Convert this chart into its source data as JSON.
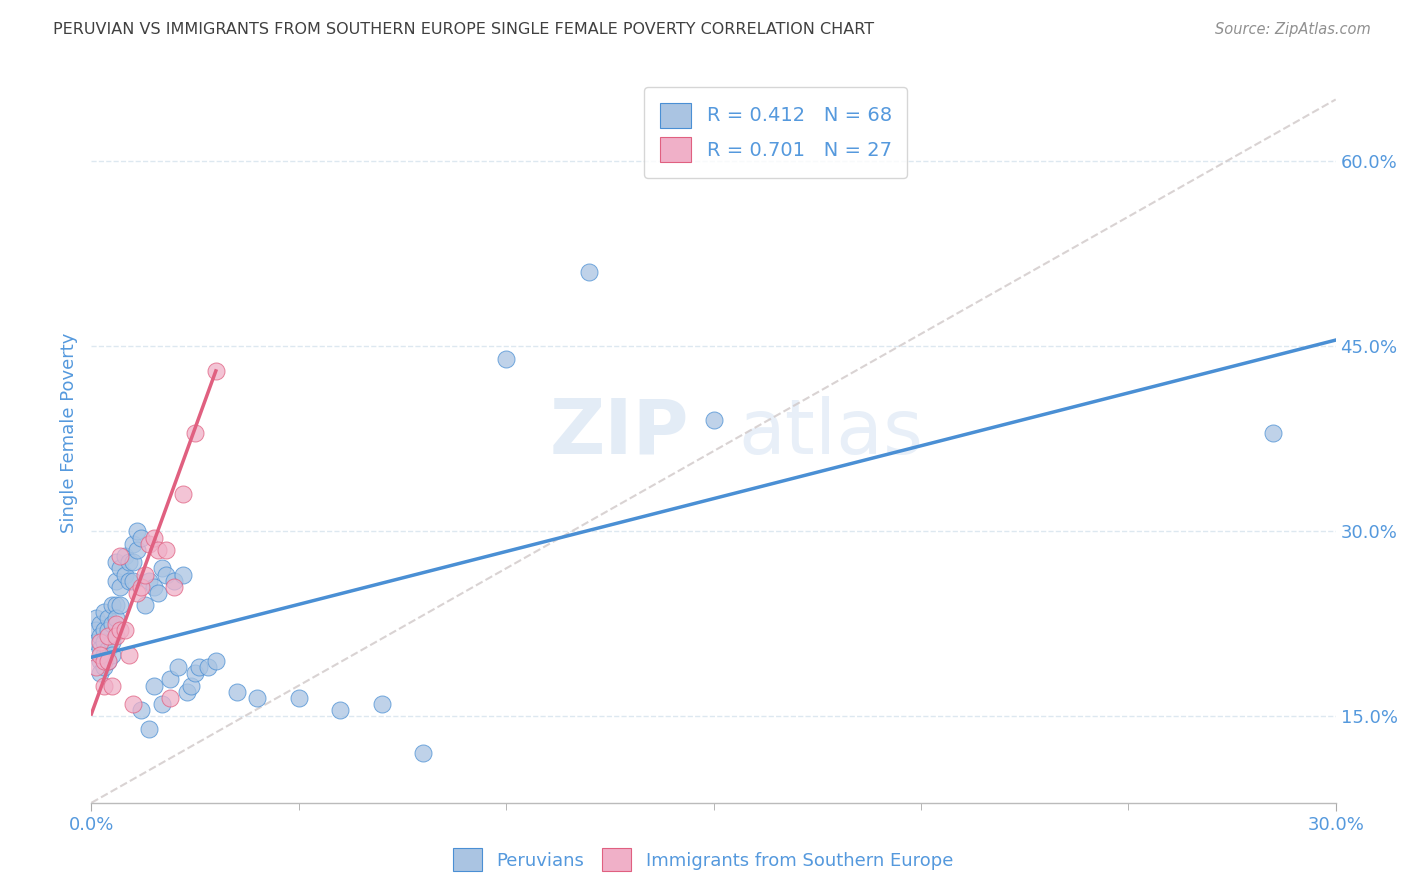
{
  "title": "PERUVIAN VS IMMIGRANTS FROM SOUTHERN EUROPE SINGLE FEMALE POVERTY CORRELATION CHART",
  "source": "Source: ZipAtlas.com",
  "ylabel": "Single Female Poverty",
  "ylabel_right_ticks": [
    0.15,
    0.3,
    0.45,
    0.6
  ],
  "ylabel_right_labels": [
    "15.0%",
    "30.0%",
    "45.0%",
    "60.0%"
  ],
  "xlim": [
    0.0,
    0.3
  ],
  "ylim": [
    0.08,
    0.68
  ],
  "peruvian_color": "#aac4e2",
  "southern_europe_color": "#f0b0c8",
  "peruvian_R": 0.412,
  "peruvian_N": 68,
  "southern_europe_R": 0.701,
  "southern_europe_N": 27,
  "legend_label_1": "Peruvians",
  "legend_label_2": "Immigrants from Southern Europe",
  "watermark_zip": "ZIP",
  "watermark_atlas": "atlas",
  "blue_line_color": "#4a8fd4",
  "pink_line_color": "#e06080",
  "dash_line_color": "#d0c8c8",
  "grid_color": "#dde8f0",
  "title_color": "#404040",
  "axis_label_color": "#5599dd",
  "source_color": "#909090",
  "peruvian_scatter_x": [
    0.001,
    0.001,
    0.001,
    0.002,
    0.002,
    0.002,
    0.002,
    0.002,
    0.003,
    0.003,
    0.003,
    0.003,
    0.003,
    0.004,
    0.004,
    0.004,
    0.004,
    0.005,
    0.005,
    0.005,
    0.005,
    0.006,
    0.006,
    0.006,
    0.006,
    0.007,
    0.007,
    0.007,
    0.008,
    0.008,
    0.009,
    0.009,
    0.01,
    0.01,
    0.01,
    0.011,
    0.011,
    0.012,
    0.012,
    0.013,
    0.014,
    0.014,
    0.015,
    0.015,
    0.016,
    0.017,
    0.017,
    0.018,
    0.019,
    0.02,
    0.021,
    0.022,
    0.023,
    0.024,
    0.025,
    0.026,
    0.028,
    0.03,
    0.035,
    0.04,
    0.05,
    0.06,
    0.07,
    0.08,
    0.1,
    0.12,
    0.15,
    0.285
  ],
  "peruvian_scatter_y": [
    0.23,
    0.22,
    0.21,
    0.225,
    0.215,
    0.205,
    0.195,
    0.185,
    0.235,
    0.22,
    0.21,
    0.2,
    0.19,
    0.23,
    0.22,
    0.205,
    0.195,
    0.24,
    0.225,
    0.21,
    0.2,
    0.275,
    0.26,
    0.24,
    0.23,
    0.27,
    0.255,
    0.24,
    0.28,
    0.265,
    0.275,
    0.26,
    0.29,
    0.275,
    0.26,
    0.3,
    0.285,
    0.295,
    0.155,
    0.24,
    0.26,
    0.14,
    0.255,
    0.175,
    0.25,
    0.27,
    0.16,
    0.265,
    0.18,
    0.26,
    0.19,
    0.265,
    0.17,
    0.175,
    0.185,
    0.19,
    0.19,
    0.195,
    0.17,
    0.165,
    0.165,
    0.155,
    0.16,
    0.12,
    0.44,
    0.51,
    0.39,
    0.38
  ],
  "southern_scatter_x": [
    0.001,
    0.002,
    0.002,
    0.003,
    0.003,
    0.004,
    0.004,
    0.005,
    0.006,
    0.006,
    0.007,
    0.007,
    0.008,
    0.009,
    0.01,
    0.011,
    0.012,
    0.013,
    0.014,
    0.015,
    0.016,
    0.018,
    0.019,
    0.02,
    0.022,
    0.025,
    0.03
  ],
  "southern_scatter_y": [
    0.19,
    0.21,
    0.2,
    0.195,
    0.175,
    0.215,
    0.195,
    0.175,
    0.225,
    0.215,
    0.28,
    0.22,
    0.22,
    0.2,
    0.16,
    0.25,
    0.255,
    0.265,
    0.29,
    0.295,
    0.285,
    0.285,
    0.165,
    0.255,
    0.33,
    0.38,
    0.43
  ],
  "blue_trendline_x": [
    0.0,
    0.3
  ],
  "blue_trendline_y": [
    0.198,
    0.455
  ],
  "pink_trendline_x": [
    0.0,
    0.03
  ],
  "pink_trendline_y": [
    0.152,
    0.43
  ],
  "dash_line_x": [
    0.0,
    0.3
  ],
  "dash_line_y": [
    0.08,
    0.65
  ]
}
